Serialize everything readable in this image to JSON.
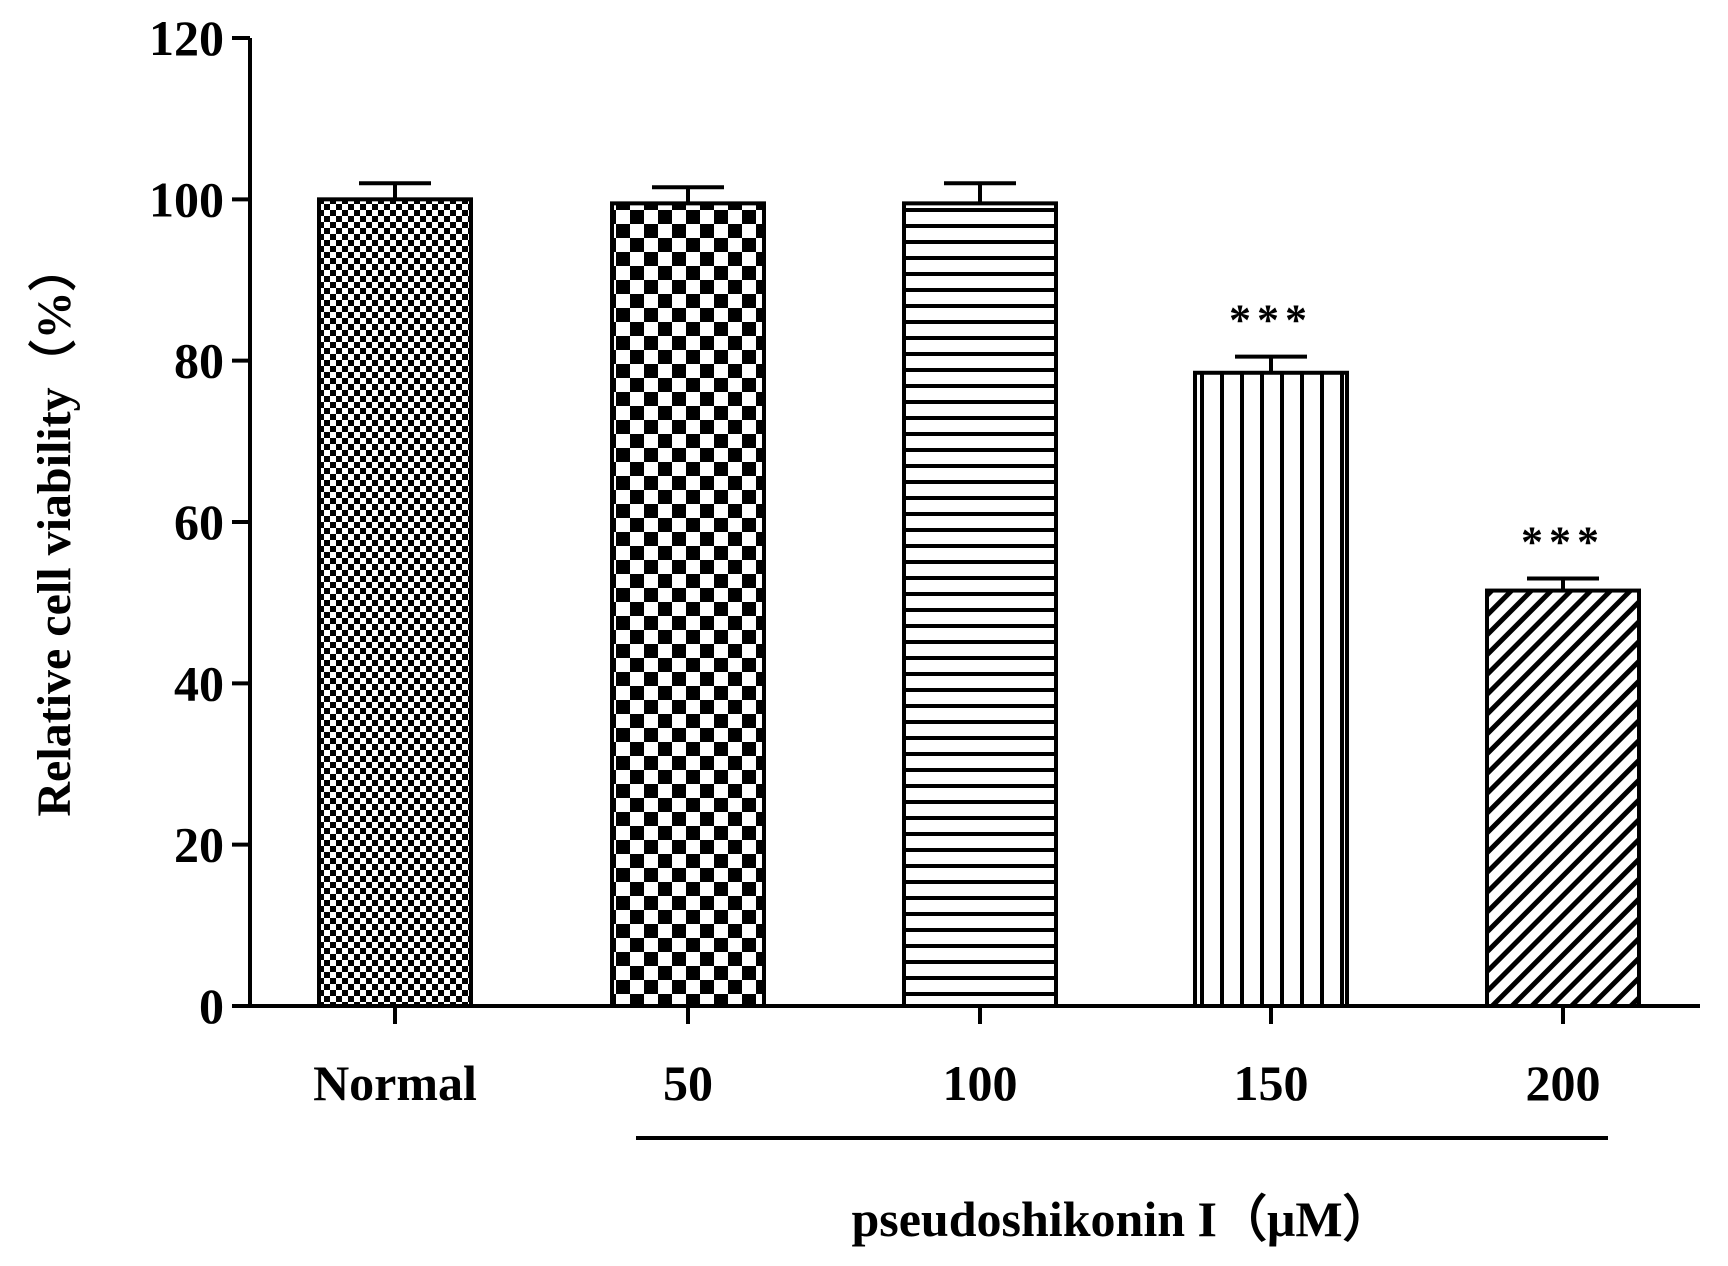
{
  "chart_data": {
    "type": "bar",
    "title": "",
    "xlabel": "",
    "ylabel": "Relative cell viability（%）",
    "ylim": [
      0,
      120
    ],
    "yticks": [
      0,
      20,
      40,
      60,
      80,
      100,
      120
    ],
    "grid": false,
    "categories": [
      "Normal",
      "50",
      "100",
      "150",
      "200"
    ],
    "values": [
      100,
      99.5,
      99.5,
      78.5,
      51.5
    ],
    "errors": [
      2,
      2,
      2.5,
      2,
      1.5
    ],
    "patterns": [
      "fine-checker",
      "checker",
      "horizontal-stripes",
      "vertical-stripes",
      "diagonal-stripes"
    ],
    "significance": [
      "",
      "",
      "",
      "***",
      "***"
    ],
    "group_label": "pseudoshikonin I（μM）",
    "group_span": [
      "50",
      "200"
    ],
    "colors": {
      "ink": "#000000",
      "background": "#ffffff"
    }
  }
}
